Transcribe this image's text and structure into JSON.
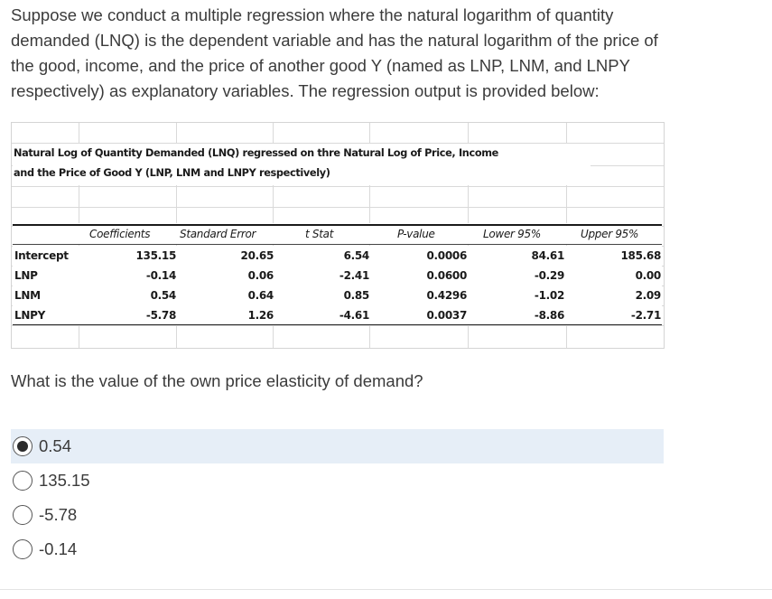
{
  "question": {
    "text": "Suppose we conduct a multiple regression where the natural logarithm of quantity demanded (LNQ) is the dependent variable and has the natural logarithm of the price of the good, income, and the price of another good Y (named as LNP, LNM, and LNPY respectively) as explanatory variables. The regression output is provided below:"
  },
  "regression_table": {
    "title_line1": "Natural Log of Quantity Demanded (LNQ) regressed on thre Natural Log of Price, Income",
    "title_line2": "and the Price of Good Y (LNP, LNM and LNPY respectively)",
    "headers": [
      "Coefficients",
      "Standard Error",
      "t Stat",
      "P-value",
      "Lower 95%",
      "Upper 95%"
    ],
    "rows": [
      {
        "label": "Intercept",
        "values": [
          "135.15",
          "20.65",
          "6.54",
          "0.0006",
          "84.61",
          "185.68"
        ]
      },
      {
        "label": "LNP",
        "values": [
          "-0.14",
          "0.06",
          "-2.41",
          "0.0600",
          "-0.29",
          "0.00"
        ]
      },
      {
        "label": "LNM",
        "values": [
          "0.54",
          "0.64",
          "0.85",
          "0.4296",
          "-1.02",
          "2.09"
        ]
      },
      {
        "label": "LNPY",
        "values": [
          "-5.78",
          "1.26",
          "-4.61",
          "0.0037",
          "-8.86",
          "-2.71"
        ]
      }
    ]
  },
  "prompt": "What is the value of the own price elasticity of demand?",
  "options": [
    {
      "label": "0.54",
      "selected": true
    },
    {
      "label": "135.15",
      "selected": false
    },
    {
      "label": "-5.78",
      "selected": false
    },
    {
      "label": "-0.14",
      "selected": false
    }
  ]
}
